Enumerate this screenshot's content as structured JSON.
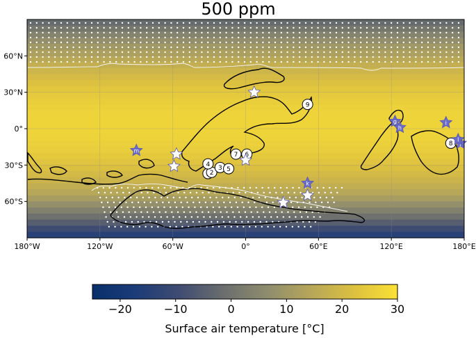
{
  "title": "500 ppm",
  "colorbar": {
    "label": "Surface air temperature [°C]",
    "min": -25,
    "max": 30,
    "colors": [
      "#08306b",
      "#1c3c78",
      "#404c72",
      "#6a6e6e",
      "#8e8c6e",
      "#b6a65a",
      "#dcc040",
      "#fbe135"
    ],
    "ticks": [
      {
        "value": -20,
        "label": "−20"
      },
      {
        "value": -10,
        "label": "−10"
      },
      {
        "value": 0,
        "label": "0"
      },
      {
        "value": 10,
        "label": "10"
      },
      {
        "value": 20,
        "label": "20"
      },
      {
        "value": 30,
        "label": "30"
      }
    ]
  },
  "axes": {
    "lon_range": [
      -180,
      180
    ],
    "lat_range": [
      -90,
      90
    ],
    "x_ticks": [
      {
        "value": -180,
        "label": "180°W"
      },
      {
        "value": -120,
        "label": "120°W"
      },
      {
        "value": -60,
        "label": "60°W"
      },
      {
        "value": 0,
        "label": "0°"
      },
      {
        "value": 60,
        "label": "60°E"
      },
      {
        "value": 120,
        "label": "120°E"
      },
      {
        "value": 180,
        "label": "180°E"
      }
    ],
    "y_ticks": [
      {
        "value": 60,
        "label": "60°N"
      },
      {
        "value": 30,
        "label": "30°N"
      },
      {
        "value": 0,
        "label": "0°"
      },
      {
        "value": -30,
        "label": "30°S"
      },
      {
        "value": -60,
        "label": "60°S"
      }
    ],
    "grid": true
  },
  "sites": {
    "numbered": [
      {
        "label": "1",
        "lon": -31,
        "lat": -37
      },
      {
        "label": "2",
        "lon": -28,
        "lat": -36
      },
      {
        "label": "3",
        "lon": -21,
        "lat": -32
      },
      {
        "label": "4",
        "lon": -31,
        "lat": -29
      },
      {
        "label": "5",
        "lon": -14,
        "lat": -33
      },
      {
        "label": "6",
        "lon": 1,
        "lat": -21
      },
      {
        "label": "7",
        "lon": -8,
        "lat": -21
      },
      {
        "label": "8",
        "lon": 169,
        "lat": -12
      },
      {
        "label": "9",
        "lon": 51,
        "lat": 20
      }
    ],
    "stars": [
      {
        "label": "a",
        "lon": 31,
        "lat": -61,
        "color": "#ffffff"
      },
      {
        "label": "b",
        "lon": 51,
        "lat": -55,
        "color": "#ffffff"
      },
      {
        "label": "c",
        "lon": 0,
        "lat": -26,
        "color": "#ffffff"
      },
      {
        "label": "d",
        "lon": -59,
        "lat": -31,
        "color": "#ffffff"
      },
      {
        "label": "e",
        "lon": -57,
        "lat": -21,
        "color": "#ffffff"
      },
      {
        "label": "f",
        "lon": 7,
        "lat": 30,
        "color": "#ffffff"
      },
      {
        "label": "g",
        "lon": 123,
        "lat": 6,
        "color": "#6a6ac8"
      },
      {
        "label": "h",
        "lon": 127,
        "lat": 1,
        "color": "#6a6ac8"
      },
      {
        "label": "i",
        "lon": 165,
        "lat": 5,
        "color": "#6a6ac8"
      },
      {
        "label": "j",
        "lon": 177,
        "lat": -12,
        "color": "#6a6ac8"
      },
      {
        "label": "k",
        "lon": 51,
        "lat": -45,
        "color": "#6a6ac8"
      },
      {
        "label": "l",
        "lon": 175,
        "lat": -9,
        "color": "#6a6ac8"
      },
      {
        "label": "m",
        "lon": -90,
        "lat": -18,
        "color": "#6a6ac8"
      }
    ]
  }
}
